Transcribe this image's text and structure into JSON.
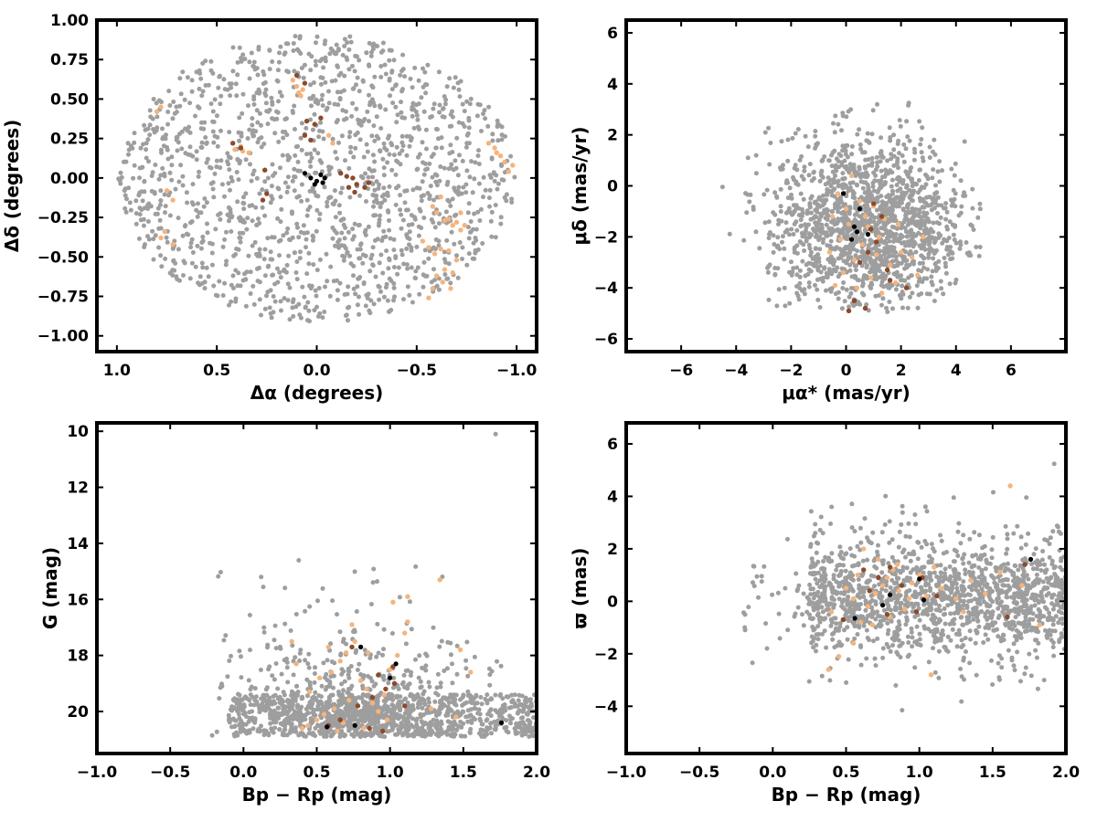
{
  "colors": {
    "field": "#9e9e9e",
    "members_light": "#f5b47d",
    "members_mid": "#e59a68",
    "members_dark": "#8b4a2b",
    "core": "#000000"
  },
  "chart_data": [
    {
      "id": "sky",
      "type": "scatter",
      "xlabel": "Δα (degrees)",
      "ylabel": "Δδ (degrees)",
      "xlim": [
        1.1,
        -1.1
      ],
      "ylim": [
        -1.1,
        1.0
      ],
      "x_ticks": [
        "1.0",
        "0.5",
        "0.0",
        "−0.5",
        "−1.0"
      ],
      "y_ticks": [
        "−1.00",
        "−0.75",
        "−0.50",
        "−0.25",
        "0.00",
        "0.25",
        "0.50",
        "0.75",
        "1.00"
      ],
      "grid": false,
      "field_distribution": {
        "shape": "disk",
        "radius_deg": 1.0,
        "count": 1500
      },
      "series": [
        {
          "color_key": "members_light",
          "points": [
            [
              0.78,
              0.45
            ],
            [
              0.8,
              0.42
            ],
            [
              0.75,
              -0.08
            ],
            [
              0.72,
              -0.14
            ],
            [
              0.76,
              -0.34
            ],
            [
              0.78,
              -0.38
            ],
            [
              0.72,
              -0.42
            ],
            [
              0.12,
              0.62
            ],
            [
              0.1,
              0.58
            ],
            [
              0.07,
              0.56
            ],
            [
              0.09,
              0.54
            ],
            [
              0.08,
              0.52
            ],
            [
              -0.06,
              0.27
            ],
            [
              -0.08,
              0.22
            ],
            [
              0.38,
              0.2
            ],
            [
              0.41,
              0.18
            ],
            [
              0.37,
              0.17
            ],
            [
              0.34,
              0.16
            ],
            [
              -0.62,
              -0.12
            ],
            [
              -0.58,
              -0.18
            ],
            [
              -0.6,
              -0.22
            ],
            [
              -0.64,
              -0.27
            ],
            [
              -0.66,
              -0.26
            ],
            [
              -0.7,
              -0.28
            ],
            [
              -0.68,
              -0.3
            ],
            [
              -0.72,
              -0.33
            ],
            [
              -0.56,
              -0.44
            ],
            [
              -0.59,
              -0.48
            ],
            [
              -0.62,
              -0.45
            ],
            [
              -0.66,
              -0.46
            ],
            [
              -0.7,
              -0.52
            ],
            [
              -0.64,
              -0.58
            ],
            [
              -0.68,
              -0.6
            ],
            [
              -0.6,
              -0.62
            ],
            [
              -0.63,
              -0.66
            ],
            [
              -0.67,
              -0.7
            ],
            [
              -0.58,
              -0.7
            ],
            [
              -0.56,
              -0.76
            ],
            [
              -0.86,
              0.22
            ],
            [
              -0.89,
              0.19
            ],
            [
              -0.92,
              0.14
            ],
            [
              -0.94,
              0.1
            ],
            [
              -0.96,
              0.04
            ],
            [
              -0.98,
              0.08
            ],
            [
              -0.9,
              0.16
            ],
            [
              -0.72,
              -0.22
            ],
            [
              -0.74,
              -0.3
            ],
            [
              -0.53,
              -0.4
            ]
          ]
        },
        {
          "color_key": "members_dark",
          "points": [
            [
              0.1,
              0.65
            ],
            [
              0.06,
              0.6
            ],
            [
              0.05,
              0.36
            ],
            [
              0.01,
              0.34
            ],
            [
              -0.02,
              0.38
            ],
            [
              0.06,
              0.27
            ],
            [
              0.03,
              0.24
            ],
            [
              0.26,
              0.05
            ],
            [
              0.25,
              -0.1
            ],
            [
              0.27,
              -0.14
            ],
            [
              -0.18,
              0.0
            ],
            [
              -0.2,
              -0.04
            ],
            [
              -0.16,
              -0.06
            ],
            [
              -0.19,
              -0.09
            ],
            [
              -0.24,
              -0.06
            ],
            [
              -0.12,
              0.03
            ],
            [
              -0.15,
              0.01
            ],
            [
              -0.26,
              -0.03
            ],
            [
              0.38,
              0.19
            ],
            [
              0.42,
              0.22
            ]
          ]
        },
        {
          "color_key": "core",
          "points": [
            [
              0.06,
              0.03
            ],
            [
              0.03,
              0.0
            ],
            [
              0.0,
              -0.02
            ],
            [
              -0.02,
              0.02
            ],
            [
              -0.04,
              0.0
            ],
            [
              -0.03,
              -0.03
            ],
            [
              0.01,
              -0.04
            ]
          ]
        }
      ]
    },
    {
      "id": "pm",
      "type": "scatter",
      "xlabel": "μα* (mas/yr)",
      "ylabel": "μδ (mas/yr)",
      "xlim": [
        -8,
        8
      ],
      "ylim": [
        -6.5,
        6.5
      ],
      "x_ticks": [
        "−6",
        "−4",
        "−2",
        "0",
        "2",
        "4",
        "6"
      ],
      "y_ticks": [
        "−6",
        "−4",
        "−2",
        "0",
        "2",
        "4",
        "6"
      ],
      "grid": false,
      "field_distribution": {
        "center": [
          0.8,
          -1.5
        ],
        "count": 1500
      },
      "series": [
        {
          "color_key": "members_light",
          "points": [
            [
              -0.3,
              -0.3
            ],
            [
              0.2,
              0.4
            ],
            [
              0.5,
              -0.6
            ],
            [
              1.0,
              -0.8
            ],
            [
              -0.5,
              -1.2
            ],
            [
              0.1,
              -1.5
            ],
            [
              0.8,
              -1.6
            ],
            [
              1.4,
              -1.3
            ],
            [
              -0.2,
              -2.1
            ],
            [
              0.6,
              -2.3
            ],
            [
              1.2,
              -2.0
            ],
            [
              2.0,
              -2.6
            ],
            [
              -0.6,
              -2.6
            ],
            [
              0.3,
              -2.9
            ],
            [
              1.6,
              -3.1
            ],
            [
              2.4,
              -2.8
            ],
            [
              -0.1,
              -3.4
            ],
            [
              0.9,
              -3.6
            ],
            [
              1.8,
              -3.8
            ],
            [
              2.6,
              -3.5
            ],
            [
              0.4,
              -4.0
            ],
            [
              1.3,
              -4.2
            ],
            [
              -0.4,
              -3.9
            ],
            [
              0.7,
              -1.2
            ],
            [
              1.9,
              -1.5
            ],
            [
              2.8,
              -2.0
            ],
            [
              0.0,
              -0.9
            ],
            [
              1.1,
              -2.7
            ]
          ]
        },
        {
          "color_key": "members_dark",
          "points": [
            [
              1.0,
              -0.7
            ],
            [
              1.3,
              -1.2
            ],
            [
              0.9,
              -1.7
            ],
            [
              1.1,
              -2.2
            ],
            [
              0.5,
              -3.0
            ],
            [
              1.5,
              -3.3
            ],
            [
              0.3,
              -4.5
            ],
            [
              0.7,
              -4.8
            ],
            [
              0.1,
              -4.9
            ],
            [
              1.6,
              -3.7
            ],
            [
              2.2,
              -4.0
            ],
            [
              0.8,
              -2.6
            ]
          ]
        },
        {
          "color_key": "core",
          "points": [
            [
              -0.1,
              -0.3
            ],
            [
              0.5,
              -0.9
            ],
            [
              0.3,
              -1.6
            ],
            [
              0.4,
              -1.8
            ],
            [
              0.8,
              -1.9
            ],
            [
              0.2,
              -2.1
            ]
          ]
        }
      ]
    },
    {
      "id": "cmd",
      "type": "scatter",
      "xlabel": "Bp − Rp (mag)",
      "ylabel": "G (mag)",
      "xlim": [
        -1.0,
        2.0
      ],
      "ylim": [
        21.5,
        9.7
      ],
      "x_ticks": [
        "−1.0",
        "−0.5",
        "0.0",
        "0.5",
        "1.0",
        "1.5",
        "2.0"
      ],
      "y_ticks": [
        "10",
        "12",
        "14",
        "16",
        "18",
        "20"
      ],
      "grid": false,
      "field_distribution": {
        "count": 1500
      },
      "series": [
        {
          "color_key": "members_light",
          "points": [
            [
              0.4,
              20.6
            ],
            [
              0.5,
              20.3
            ],
            [
              0.55,
              20.1
            ],
            [
              0.62,
              19.9
            ],
            [
              0.68,
              20.4
            ],
            [
              0.72,
              19.6
            ],
            [
              0.45,
              19.3
            ],
            [
              0.52,
              18.8
            ],
            [
              0.6,
              18.6
            ],
            [
              0.66,
              18.2
            ],
            [
              0.7,
              17.9
            ],
            [
              0.76,
              17.5
            ],
            [
              0.8,
              18.9
            ],
            [
              0.84,
              19.2
            ],
            [
              0.88,
              19.7
            ],
            [
              0.92,
              20.0
            ],
            [
              0.96,
              19.4
            ],
            [
              1.0,
              18.5
            ],
            [
              1.05,
              18.0
            ],
            [
              1.1,
              17.2
            ],
            [
              1.12,
              16.8
            ],
            [
              0.58,
              17.7
            ],
            [
              0.33,
              17.5
            ],
            [
              0.74,
              16.9
            ],
            [
              1.02,
              16.1
            ],
            [
              1.12,
              15.9
            ],
            [
              1.34,
              15.3
            ],
            [
              1.28,
              19.9
            ],
            [
              1.45,
              20.2
            ],
            [
              1.55,
              18.6
            ],
            [
              1.48,
              17.8
            ],
            [
              0.64,
              20.7
            ],
            [
              0.44,
              20.5
            ],
            [
              0.82,
              20.6
            ],
            [
              0.98,
              20.3
            ],
            [
              0.36,
              18.3
            ],
            [
              0.85,
              17.9
            ]
          ]
        },
        {
          "color_key": "members_dark",
          "points": [
            [
              0.86,
              20.6
            ],
            [
              0.66,
              20.3
            ],
            [
              0.78,
              19.8
            ],
            [
              0.88,
              19.5
            ],
            [
              0.97,
              19.2
            ],
            [
              1.02,
              18.4
            ],
            [
              0.74,
              17.7
            ],
            [
              0.58,
              20.5
            ],
            [
              0.95,
              20.7
            ],
            [
              1.03,
              19.0
            ],
            [
              1.1,
              19.8
            ],
            [
              0.92,
              18.7
            ]
          ]
        },
        {
          "color_key": "core",
          "points": [
            [
              0.57,
              20.55
            ],
            [
              0.76,
              20.5
            ],
            [
              1.76,
              20.4
            ],
            [
              1.0,
              18.8
            ],
            [
              1.04,
              18.3
            ],
            [
              0.8,
              17.7
            ]
          ]
        }
      ]
    },
    {
      "id": "parallax",
      "type": "scatter",
      "xlabel": "Bp − Rp (mag)",
      "ylabel": "ϖ (mas)",
      "xlim": [
        -1.0,
        2.0
      ],
      "ylim": [
        -5.8,
        6.8
      ],
      "x_ticks": [
        "−1.0",
        "−0.5",
        "0.0",
        "0.5",
        "1.0",
        "1.5",
        "2.0"
      ],
      "y_ticks": [
        "−4",
        "−2",
        "0",
        "2",
        "4",
        "6"
      ],
      "grid": false,
      "field_distribution": {
        "count": 1500
      },
      "series": [
        {
          "color_key": "members_light",
          "points": [
            [
              0.38,
              -2.6
            ],
            [
              0.45,
              -2.1
            ],
            [
              0.55,
              -1.6
            ],
            [
              0.6,
              -0.8
            ],
            [
              0.65,
              -0.2
            ],
            [
              0.7,
              0.3
            ],
            [
              0.75,
              0.6
            ],
            [
              0.78,
              0.9
            ],
            [
              0.82,
              1.2
            ],
            [
              0.86,
              0.4
            ],
            [
              0.9,
              -0.3
            ],
            [
              0.95,
              0.7
            ],
            [
              1.0,
              1.0
            ],
            [
              1.05,
              0.2
            ],
            [
              1.08,
              -2.8
            ],
            [
              1.15,
              0.5
            ],
            [
              1.25,
              0.1
            ],
            [
              1.35,
              0.8
            ],
            [
              1.45,
              0.3
            ],
            [
              1.55,
              1.1
            ],
            [
              1.62,
              4.4
            ],
            [
              1.7,
              0.6
            ],
            [
              1.82,
              -0.9
            ],
            [
              0.5,
              0.5
            ],
            [
              0.58,
              1.0
            ],
            [
              0.68,
              -0.9
            ],
            [
              0.72,
              1.6
            ],
            [
              0.62,
              2.0
            ],
            [
              0.85,
              1.4
            ],
            [
              0.4,
              -0.4
            ],
            [
              0.93,
              0.1
            ],
            [
              0.8,
              -0.6
            ],
            [
              1.1,
              1.3
            ],
            [
              1.3,
              -0.4
            ],
            [
              0.55,
              0.1
            ]
          ]
        },
        {
          "color_key": "members_dark",
          "points": [
            [
              0.48,
              -0.7
            ],
            [
              0.66,
              0.4
            ],
            [
              0.72,
              0.9
            ],
            [
              0.78,
              -0.5
            ],
            [
              0.8,
              1.3
            ],
            [
              0.88,
              0.6
            ],
            [
              0.98,
              -0.4
            ],
            [
              1.02,
              0.9
            ],
            [
              1.12,
              0.2
            ],
            [
              1.6,
              -0.6
            ],
            [
              1.72,
              1.4
            ],
            [
              0.62,
              1.2
            ]
          ]
        },
        {
          "color_key": "core",
          "points": [
            [
              0.56,
              -0.65
            ],
            [
              0.75,
              -0.15
            ],
            [
              0.8,
              0.25
            ],
            [
              1.0,
              0.85
            ],
            [
              1.03,
              0.05
            ],
            [
              1.76,
              1.6
            ]
          ]
        }
      ]
    }
  ]
}
